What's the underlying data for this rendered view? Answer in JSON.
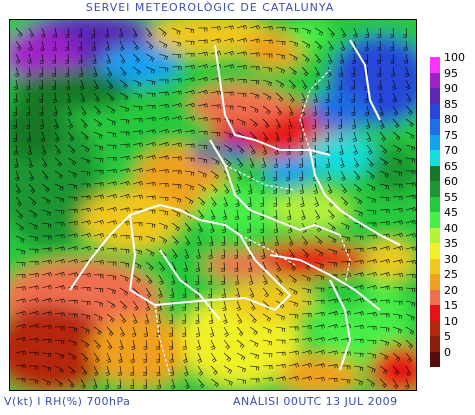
{
  "header": {
    "title": "SERVEI METEOROLÒGIC DE CATALUNYA"
  },
  "footer": {
    "left": "V(kt) I RH(%) 700hPa",
    "right": "ANÀLISI 00UTC 13 JUL 2009"
  },
  "legend": {
    "items": [
      {
        "label": "100",
        "color": "#ff33ff"
      },
      {
        "label": "95",
        "color": "#a020c8"
      },
      {
        "label": "90",
        "color": "#5a28b4"
      },
      {
        "label": "85",
        "color": "#2846d8"
      },
      {
        "label": "80",
        "color": "#1e6ee6"
      },
      {
        "label": "75",
        "color": "#19a0f0"
      },
      {
        "label": "70",
        "color": "#19dcdc"
      },
      {
        "label": "65",
        "color": "#147828"
      },
      {
        "label": "60",
        "color": "#1e9632"
      },
      {
        "label": "55",
        "color": "#28c83c"
      },
      {
        "label": "45",
        "color": "#46ee46"
      },
      {
        "label": "40",
        "color": "#b4f03c"
      },
      {
        "label": "35",
        "color": "#f0f028"
      },
      {
        "label": "30",
        "color": "#f0c81e"
      },
      {
        "label": "25",
        "color": "#f0a01e"
      },
      {
        "label": "20",
        "color": "#f06e50"
      },
      {
        "label": "15",
        "color": "#e61414"
      },
      {
        "label": "10",
        "color": "#b4280a"
      },
      {
        "label": "5",
        "color": "#8c1e0a"
      },
      {
        "label": "0",
        "color": "#5a0a0a"
      }
    ]
  }
}
